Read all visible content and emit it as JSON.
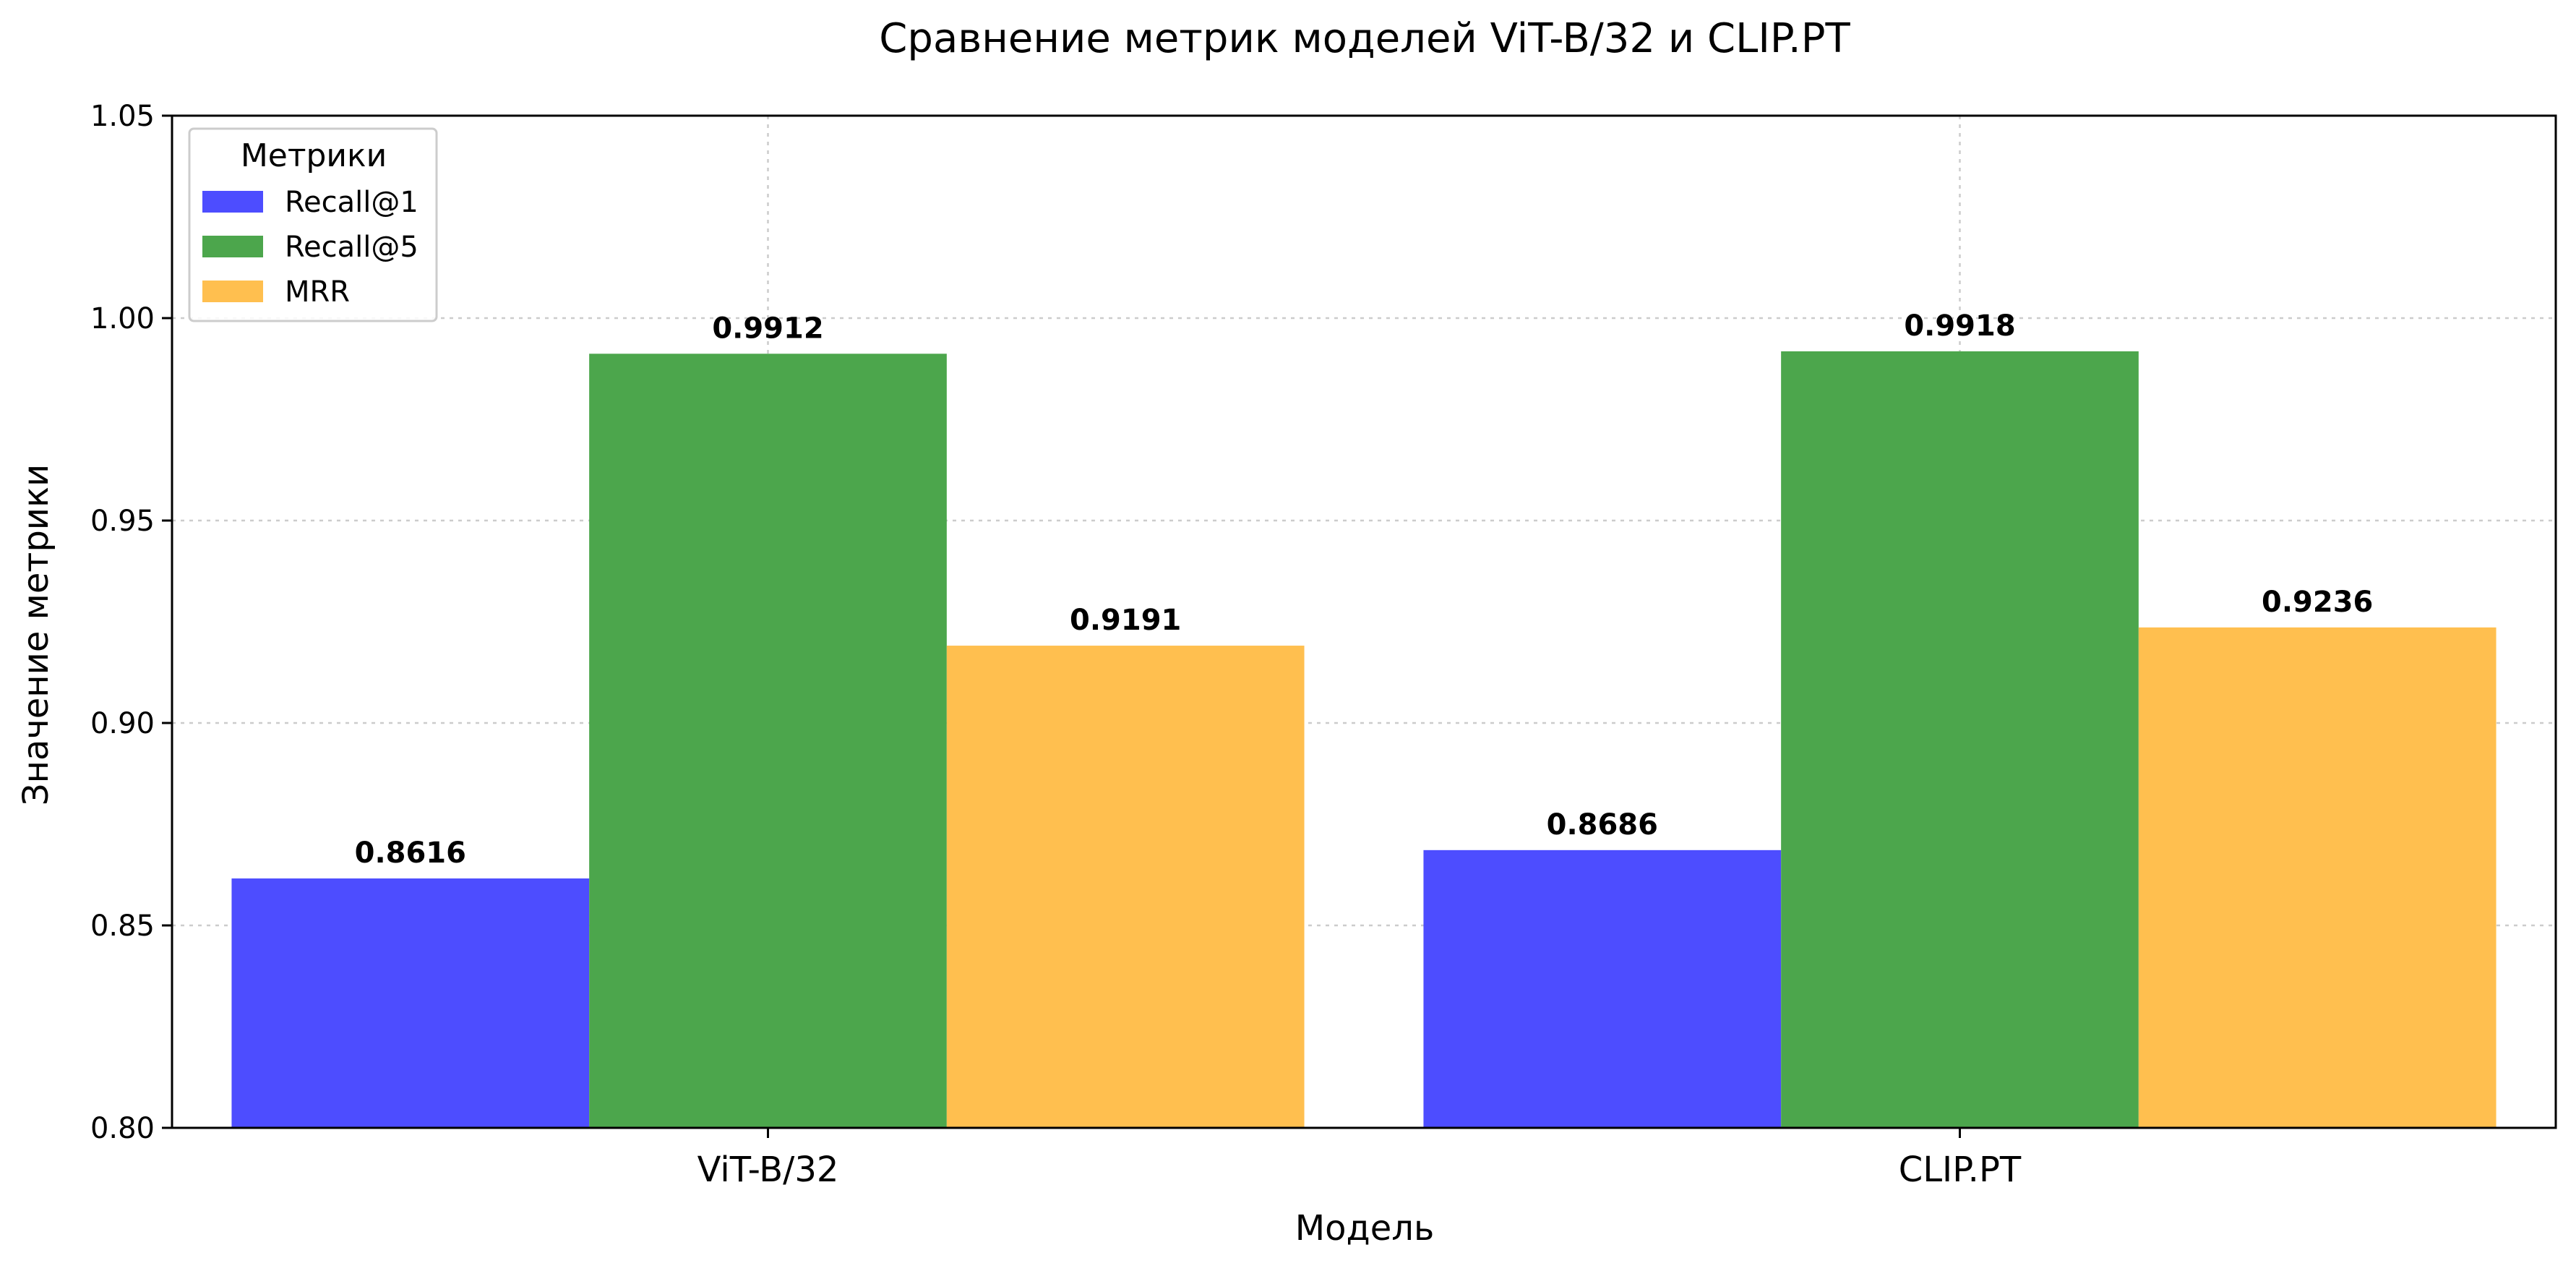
{
  "chart_data": {
    "type": "bar",
    "title": "Сравнение метрик моделей ViT-B/32 и CLIP.PT",
    "xlabel": "Модель",
    "ylabel": "Значение метрики",
    "categories": [
      "ViT-B/32",
      "CLIP.PT"
    ],
    "series": [
      {
        "name": "Recall@1",
        "values": [
          0.8616,
          0.8686
        ],
        "color": "#4d4dff"
      },
      {
        "name": "Recall@5",
        "values": [
          0.9912,
          0.9918
        ],
        "color": "#4ca64c"
      },
      {
        "name": "MRR",
        "values": [
          0.9191,
          0.9236
        ],
        "color": "#ffbf4f"
      }
    ],
    "value_labels": [
      [
        "0.8616",
        "0.8686"
      ],
      [
        "0.9912",
        "0.9918"
      ],
      [
        "0.9191",
        "0.9236"
      ]
    ],
    "ylim": [
      0.8,
      1.05
    ],
    "yticks": [
      0.8,
      0.85,
      0.9,
      0.95,
      1.0,
      1.05
    ],
    "ytick_labels": [
      "0.80",
      "0.85",
      "0.90",
      "0.95",
      "1.00",
      "1.05"
    ],
    "grid": true,
    "legend": {
      "title": "Метрики",
      "placement": "top-left"
    }
  }
}
